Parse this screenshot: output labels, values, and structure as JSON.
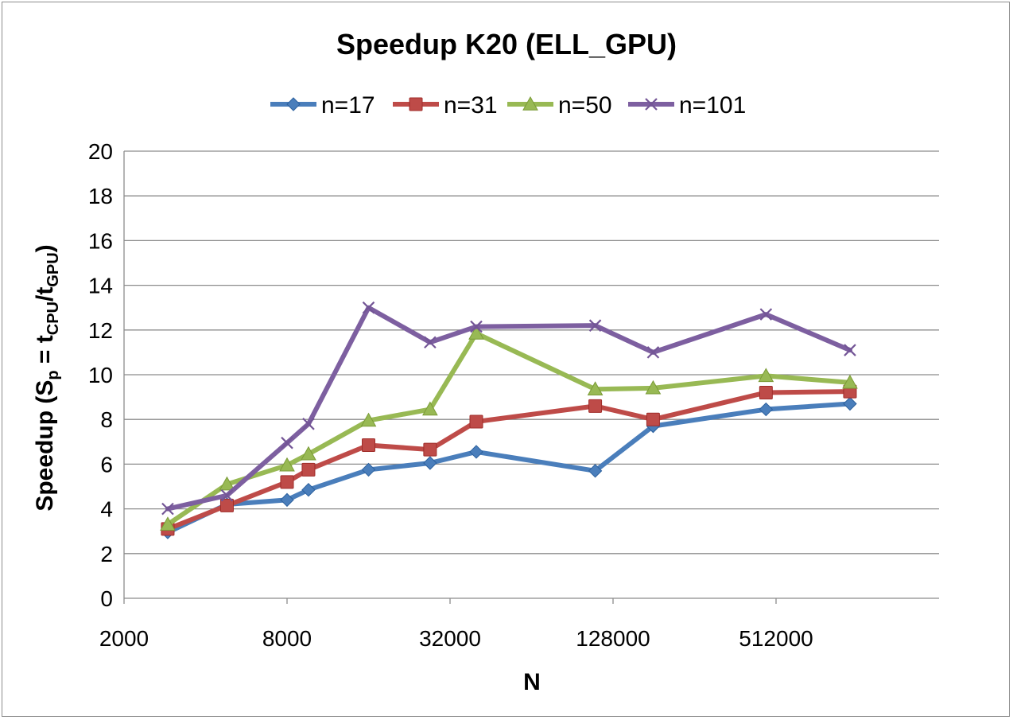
{
  "chart_data": {
    "type": "line",
    "title": "Speedup K20 (ELL_GPU)",
    "xlabel": "N",
    "ylabel": {
      "parts": [
        {
          "text": "Speedup (S",
          "sub": false
        },
        {
          "text": "p",
          "sub": true
        },
        {
          "text": " = t",
          "sub": false
        },
        {
          "text": "CPU",
          "sub": true
        },
        {
          "text": "/t",
          "sub": false
        },
        {
          "text": "GPU",
          "sub": true
        },
        {
          "text": ")",
          "sub": false
        }
      ]
    },
    "x_scale": "log2",
    "xlim": [
      2000,
      2048000
    ],
    "x_ticks": [
      {
        "value": 2000,
        "label": "2000"
      },
      {
        "value": 8000,
        "label": "8000"
      },
      {
        "value": 32000,
        "label": "32000"
      },
      {
        "value": 128000,
        "label": "128000"
      },
      {
        "value": 512000,
        "label": "512000"
      }
    ],
    "ylim": [
      0,
      20
    ],
    "y_ticks": [
      0,
      2,
      4,
      6,
      8,
      10,
      12,
      14,
      16,
      18,
      20
    ],
    "grid": "horizontal",
    "legend_position": "top",
    "x": [
      2900,
      4800,
      8000,
      9600,
      16000,
      27000,
      40000,
      110000,
      180000,
      470000,
      960000
    ],
    "series": [
      {
        "name": "n=17",
        "color": "#4a7ebb",
        "marker": "diamond",
        "values": [
          2.95,
          4.2,
          4.4,
          4.85,
          5.75,
          6.05,
          6.55,
          5.7,
          7.7,
          8.45,
          8.7
        ]
      },
      {
        "name": "n=31",
        "color": "#be4b48",
        "marker": "square",
        "values": [
          3.1,
          4.15,
          5.2,
          5.75,
          6.85,
          6.65,
          7.9,
          8.6,
          8.0,
          9.2,
          9.25
        ]
      },
      {
        "name": "n=50",
        "color": "#98b954",
        "marker": "triangle",
        "values": [
          3.3,
          5.1,
          5.95,
          6.45,
          7.95,
          8.45,
          11.85,
          9.35,
          9.4,
          9.95,
          9.65
        ]
      },
      {
        "name": "n=101",
        "color": "#7d5fa0",
        "marker": "x",
        "values": [
          4.0,
          4.6,
          6.95,
          7.8,
          13.0,
          11.45,
          12.15,
          12.2,
          11.0,
          12.7,
          11.1
        ]
      }
    ]
  }
}
